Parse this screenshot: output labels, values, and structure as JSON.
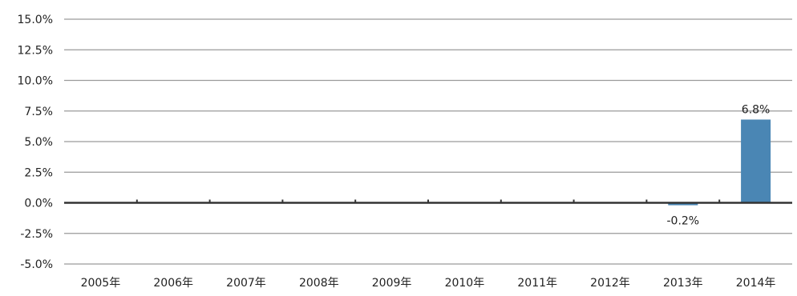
{
  "chart_data": {
    "type": "bar",
    "title": "",
    "xlabel": "",
    "ylabel": "",
    "categories": [
      "2005年",
      "2006年",
      "2007年",
      "2008年",
      "2009年",
      "2010年",
      "2011年",
      "2012年",
      "2013年",
      "2014年"
    ],
    "values": [
      0,
      0,
      0,
      0,
      0,
      0,
      0,
      0,
      -0.2,
      6.8
    ],
    "data_labels": [
      "",
      "",
      "",
      "",
      "",
      "",
      "",
      "",
      "-0.2%",
      "6.8%"
    ],
    "ylim": [
      -5,
      15
    ],
    "yticks": [
      15,
      12.5,
      10,
      7.5,
      5,
      2.5,
      0,
      -2.5,
      -5
    ],
    "ytick_labels": [
      "15.0%",
      "12.5%",
      "10.0%",
      "7.5%",
      "5.0%",
      "2.5%",
      "0.0%",
      "-2.5%",
      "-5.0%"
    ],
    "grid": true,
    "legend": "none",
    "colors": {
      "bar": "#4a86b4",
      "gridline": "#9a9a9a",
      "zero_line": "#333333",
      "text": "#222222"
    }
  }
}
